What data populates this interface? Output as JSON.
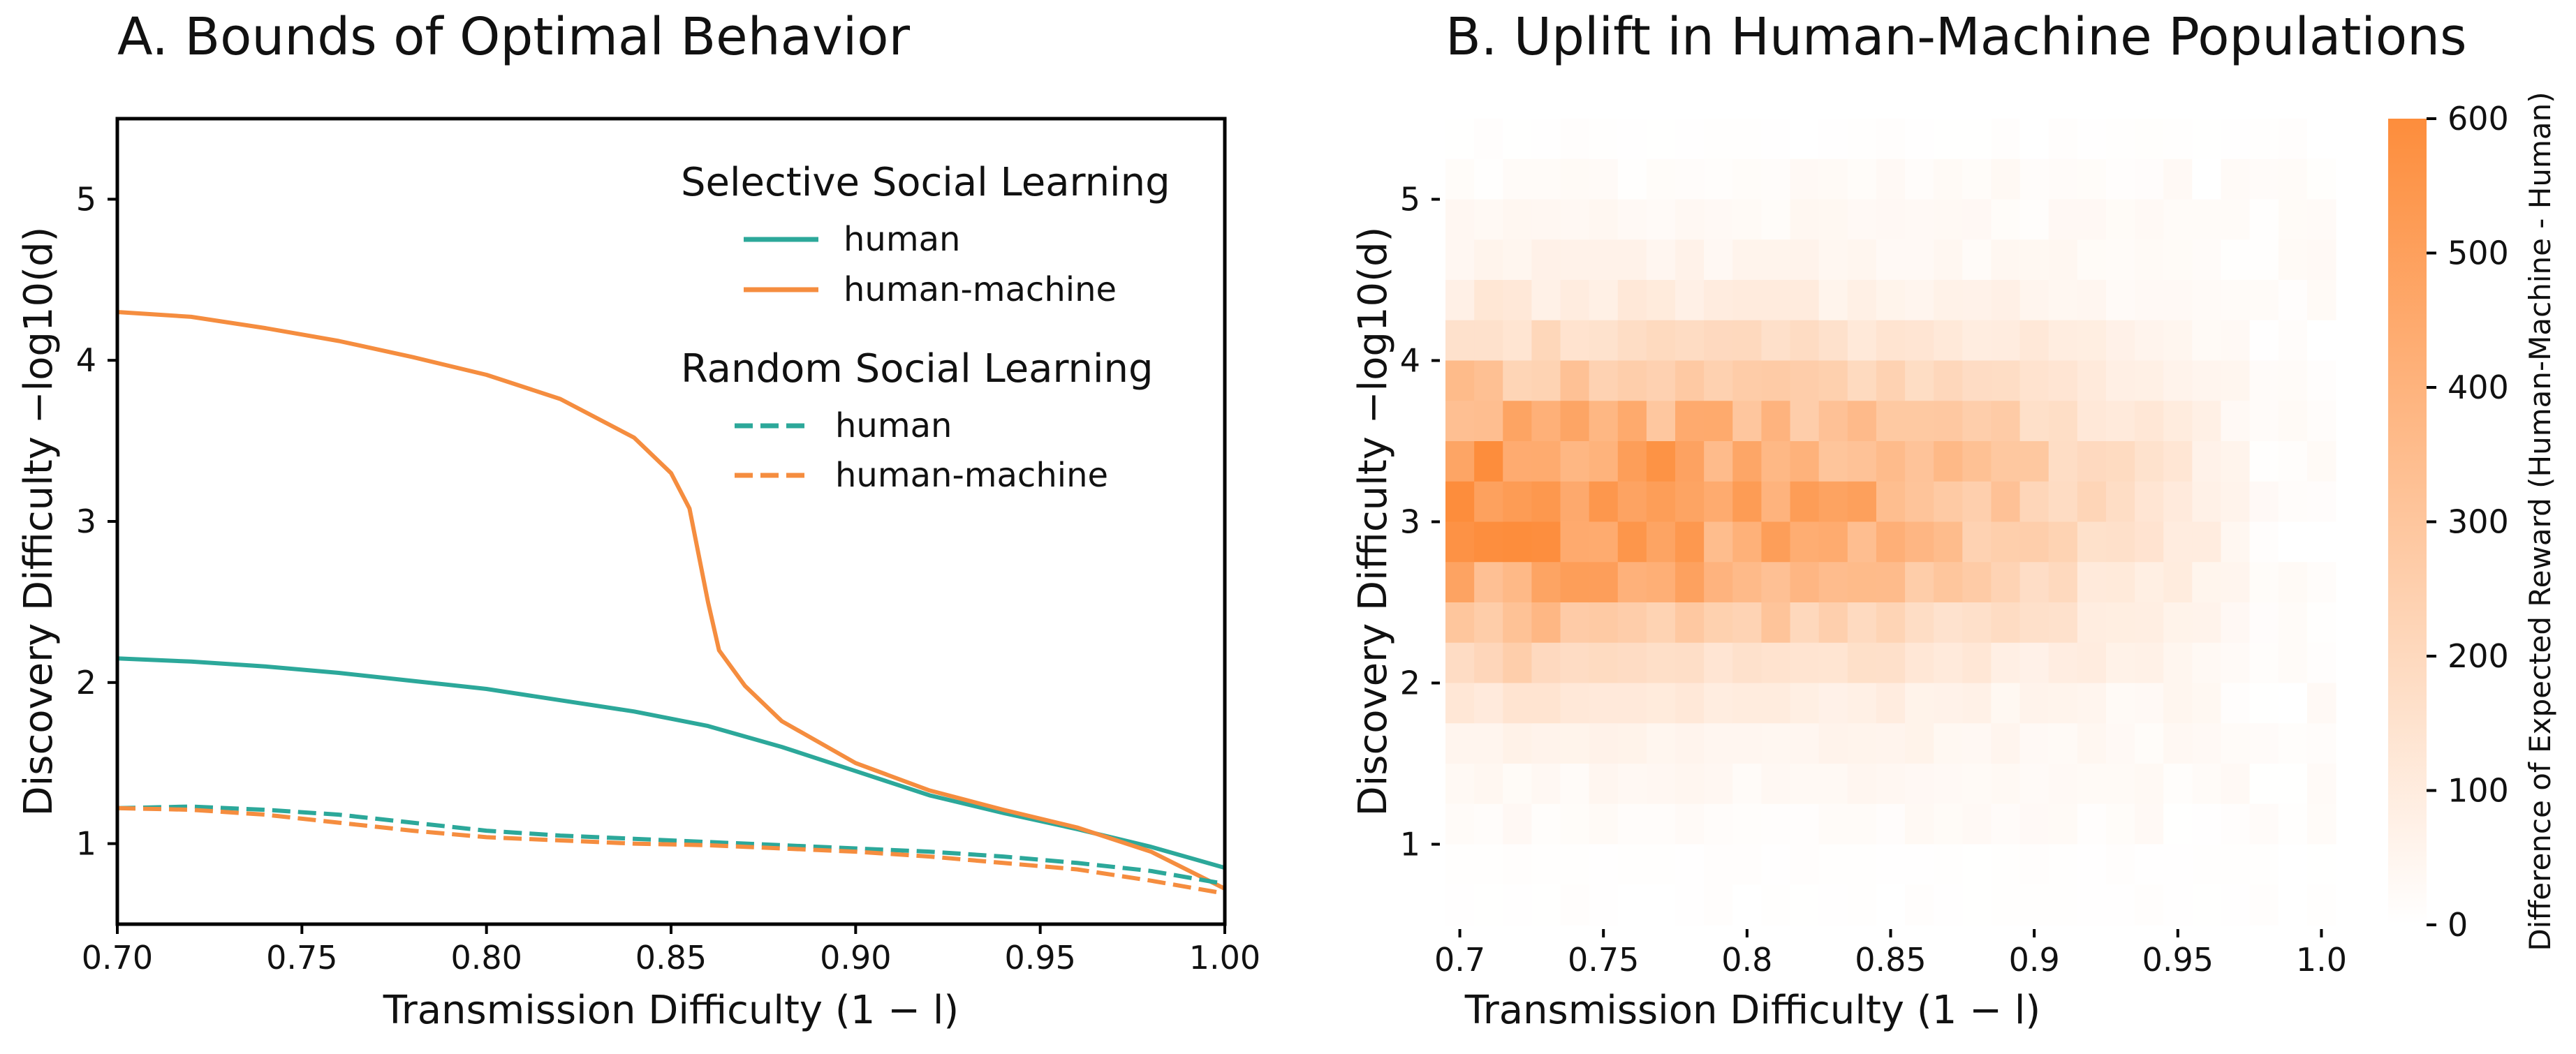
{
  "panel_a": {
    "title": "A. Bounds of Optimal Behavior",
    "xlabel": "Transmission Difficulty (1 − l)",
    "ylabel": "Discovery Difficulty  −log10(d)",
    "legend": {
      "selective_title": "Selective Social Learning",
      "random_title": "Random Social Learning",
      "human": "human",
      "human_machine": "human-machine"
    },
    "colors": {
      "human": "#2ca89a",
      "human_machine": "#f58d3f"
    }
  },
  "panel_b": {
    "title": "B. Uplift in Human-Machine Populations",
    "xlabel": "Transmission Difficulty  (1 − l)",
    "ylabel": "Discovery Difficulty  −log10(d)",
    "colorbar_label": "Difference of Expected Reward (Human-Machine - Human)"
  },
  "chart_data": [
    {
      "type": "line",
      "title": "A. Bounds of Optimal Behavior",
      "xlabel": "Transmission Difficulty (1 − l)",
      "ylabel": "Discovery Difficulty −log10(d)",
      "xlim": [
        0.7,
        1.0
      ],
      "ylim": [
        0.5,
        5.5
      ],
      "xticks": [
        "0.70",
        "0.75",
        "0.80",
        "0.85",
        "0.90",
        "0.95",
        "1.00"
      ],
      "yticks": [
        "1",
        "2",
        "3",
        "4",
        "5"
      ],
      "grid": false,
      "legend_position": "top-right",
      "series": [
        {
          "name": "human",
          "group": "Selective Social Learning",
          "style": "solid",
          "color": "#2ca89a",
          "x": [
            0.7,
            0.72,
            0.74,
            0.76,
            0.78,
            0.8,
            0.82,
            0.84,
            0.86,
            0.88,
            0.9,
            0.92,
            0.94,
            0.96,
            0.98,
            1.0
          ],
          "y": [
            2.15,
            2.13,
            2.1,
            2.06,
            2.01,
            1.96,
            1.89,
            1.82,
            1.73,
            1.6,
            1.45,
            1.3,
            1.19,
            1.09,
            0.98,
            0.85
          ]
        },
        {
          "name": "human-machine",
          "group": "Selective Social Learning",
          "style": "solid",
          "color": "#f58d3f",
          "x": [
            0.7,
            0.72,
            0.74,
            0.76,
            0.78,
            0.8,
            0.82,
            0.84,
            0.85,
            0.855,
            0.86,
            0.863,
            0.87,
            0.88,
            0.9,
            0.92,
            0.94,
            0.96,
            0.98,
            1.0
          ],
          "y": [
            4.3,
            4.27,
            4.2,
            4.12,
            4.02,
            3.91,
            3.76,
            3.52,
            3.3,
            3.08,
            2.5,
            2.2,
            1.98,
            1.76,
            1.5,
            1.33,
            1.21,
            1.1,
            0.95,
            0.72
          ]
        },
        {
          "name": "human",
          "group": "Random Social Learning",
          "style": "dashed",
          "color": "#2ca89a",
          "x": [
            0.7,
            0.72,
            0.74,
            0.76,
            0.78,
            0.8,
            0.82,
            0.84,
            0.86,
            0.88,
            0.9,
            0.92,
            0.94,
            0.96,
            0.98,
            1.0
          ],
          "y": [
            1.22,
            1.23,
            1.21,
            1.18,
            1.13,
            1.08,
            1.05,
            1.03,
            1.01,
            0.99,
            0.97,
            0.95,
            0.92,
            0.88,
            0.83,
            0.75
          ]
        },
        {
          "name": "human-machine",
          "group": "Random Social Learning",
          "style": "dashed",
          "color": "#f58d3f",
          "x": [
            0.7,
            0.72,
            0.74,
            0.76,
            0.78,
            0.8,
            0.82,
            0.84,
            0.86,
            0.88,
            0.9,
            0.92,
            0.94,
            0.96,
            0.98,
            1.0
          ],
          "y": [
            1.22,
            1.21,
            1.18,
            1.13,
            1.08,
            1.04,
            1.02,
            1.0,
            0.99,
            0.97,
            0.95,
            0.92,
            0.88,
            0.84,
            0.77,
            0.69
          ]
        }
      ]
    },
    {
      "type": "heatmap",
      "title": "B. Uplift in Human-Machine Populations",
      "xlabel": "Transmission Difficulty (1 − l)",
      "ylabel": "Discovery Difficulty −log10(d)",
      "xlim": [
        0.695,
        1.005
      ],
      "ylim": [
        0.5,
        5.5
      ],
      "xticks": [
        "0.7",
        "0.75",
        "0.8",
        "0.85",
        "0.9",
        "0.95",
        "1.0"
      ],
      "yticks": [
        "1",
        "2",
        "3",
        "4",
        "5"
      ],
      "colorbar": {
        "min": 0,
        "max": 600,
        "ticks": [
          "0",
          "100",
          "200",
          "300",
          "400",
          "500",
          "600"
        ],
        "color_min": "#ffffff",
        "color_max": "#fd8d3c"
      },
      "x_bins": 31,
      "y_bins": 20,
      "value_model": "approx. Gaussian uplift peaking ~530 near x 0.72–0.76, y ≈ 3.1; cells stored as generated field"
    }
  ]
}
